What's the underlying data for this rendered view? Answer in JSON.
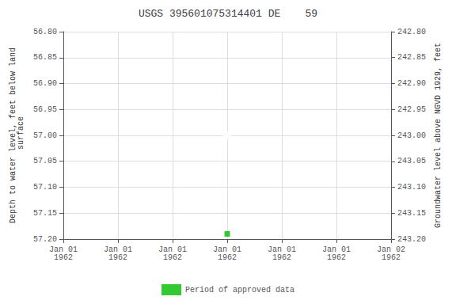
{
  "chart_data": {
    "type": "scatter",
    "title": "USGS 395601075314401 DE    59",
    "ylabel": "Depth to water level, feet below land\n surface",
    "y2label": "Groundwater level above NGVD 1929, feet",
    "categories": [
      "Jan 01\n1962",
      "Jan 01\n1962",
      "Jan 01\n1962",
      "Jan 01\n1962",
      "Jan 01\n1962",
      "Jan 01\n1962",
      "Jan 02\n1962"
    ],
    "series": [
      {
        "color": "#0000ff",
        "marker": "open_circle",
        "values": [
          null,
          null,
          null,
          57.0,
          null,
          null,
          null
        ]
      },
      {
        "name": "Period of approved data",
        "color": "#00bb00",
        "marker": "square",
        "values": [
          null,
          null,
          null,
          57.19,
          null,
          null,
          null
        ]
      }
    ],
    "ylim": [
      57.2,
      56.8
    ],
    "yticks": [
      {
        "value": 56.8,
        "label": "56.80"
      },
      {
        "value": 56.85,
        "label": "56.85"
      },
      {
        "value": 56.9,
        "label": "56.90"
      },
      {
        "value": 56.95,
        "label": "56.95"
      },
      {
        "value": 57.0,
        "label": "57.00"
      },
      {
        "value": 57.05,
        "label": "57.05"
      },
      {
        "value": 57.1,
        "label": "57.10"
      },
      {
        "value": 57.15,
        "label": "57.15"
      },
      {
        "value": 57.2,
        "label": "57.20"
      }
    ],
    "y2lim": [
      243.2,
      242.8
    ],
    "y2ticks": [
      {
        "value": 243.2,
        "label": "243.20"
      },
      {
        "value": 243.15,
        "label": "243.15"
      },
      {
        "value": 243.1,
        "label": "243.10"
      },
      {
        "value": 243.05,
        "label": "243.05"
      },
      {
        "value": 243.0,
        "label": "243.00"
      },
      {
        "value": 242.95,
        "label": "242.95"
      },
      {
        "value": 242.9,
        "label": "242.90"
      },
      {
        "value": 242.85,
        "label": "242.85"
      },
      {
        "value": 242.8,
        "label": "242.80"
      }
    ],
    "grid": true,
    "legend": "bottom"
  }
}
